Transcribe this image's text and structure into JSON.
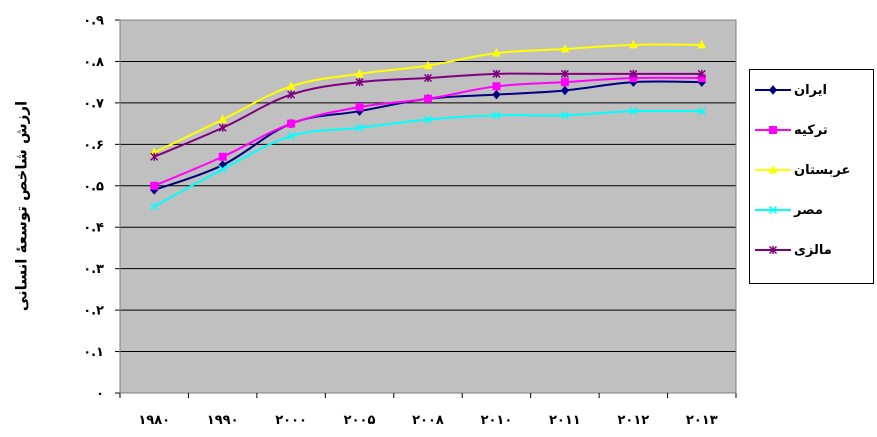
{
  "chart_data": {
    "type": "line",
    "title": "",
    "xlabel": "",
    "ylabel": "ارزش شاخص توسعۀ انسانی",
    "categories": [
      "۱۹۸۰",
      "۱۹۹۰",
      "۲۰۰۰",
      "۲۰۰۵",
      "۲۰۰۸",
      "۲۰۱۰",
      "۲۰۱۱",
      "۲۰۱۲",
      "۲۰۱۳"
    ],
    "ylim": [
      0,
      0.9
    ],
    "yticks": [
      0,
      0.1,
      0.2,
      0.3,
      0.4,
      0.5,
      0.6,
      0.7,
      0.8,
      0.9
    ],
    "ytick_labels": [
      "۰",
      "۰.۱",
      "۰.۲",
      "۰.۳",
      "۰.۴",
      "۰.۵",
      "۰.۶",
      "۰.۷",
      "۰.۸",
      "۰.۹"
    ],
    "grid": true,
    "plot_background": "#c0c0c0",
    "legend_position": "right",
    "series": [
      {
        "name": "ایران",
        "color": "#000080",
        "marker": "diamond",
        "values": [
          0.49,
          0.55,
          0.65,
          0.68,
          0.71,
          0.72,
          0.73,
          0.75,
          0.75
        ]
      },
      {
        "name": "ترکیه",
        "color": "#ff00ff",
        "marker": "square",
        "values": [
          0.5,
          0.57,
          0.65,
          0.69,
          0.71,
          0.74,
          0.75,
          0.76,
          0.76
        ]
      },
      {
        "name": "عربستان",
        "color": "#ffff00",
        "marker": "triangle",
        "values": [
          0.58,
          0.66,
          0.74,
          0.77,
          0.79,
          0.82,
          0.83,
          0.84,
          0.84
        ]
      },
      {
        "name": "مصر",
        "color": "#00ffff",
        "marker": "x",
        "values": [
          0.45,
          0.54,
          0.62,
          0.64,
          0.66,
          0.67,
          0.67,
          0.68,
          0.68
        ]
      },
      {
        "name": "مالزی",
        "color": "#800080",
        "marker": "star",
        "values": [
          0.57,
          0.64,
          0.72,
          0.75,
          0.76,
          0.77,
          0.77,
          0.77,
          0.77
        ]
      }
    ]
  }
}
